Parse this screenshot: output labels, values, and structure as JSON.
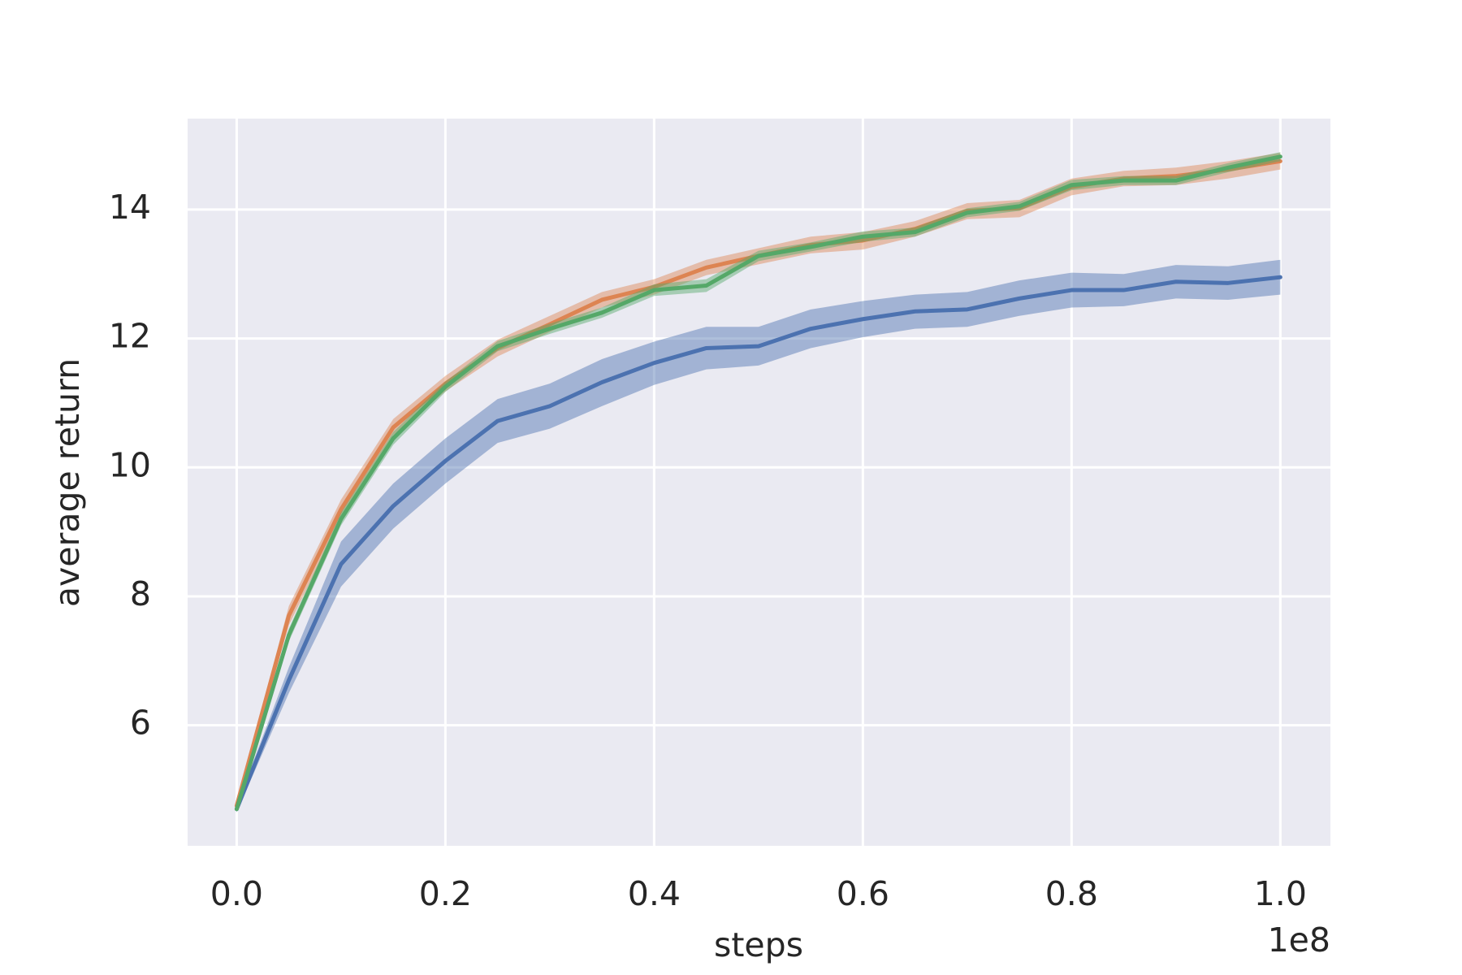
{
  "chart_data": {
    "type": "line",
    "xlabel": "steps",
    "ylabel": "average return",
    "x_offset_label": "1e8",
    "x": [
      0,
      0.05,
      0.1,
      0.15,
      0.2,
      0.25,
      0.3,
      0.35,
      0.4,
      0.45,
      0.5,
      0.55,
      0.6,
      0.65,
      0.7,
      0.75,
      0.8,
      0.85,
      0.9,
      0.95,
      1.0
    ],
    "series": [
      {
        "color": "#4c72b0",
        "values": [
          4.7,
          6.7,
          8.5,
          9.4,
          10.1,
          10.72,
          10.95,
          11.32,
          11.62,
          11.85,
          11.88,
          12.15,
          12.3,
          12.42,
          12.45,
          12.62,
          12.75,
          12.75,
          12.88,
          12.86,
          12.95
        ],
        "lower": [
          4.65,
          6.5,
          8.15,
          9.05,
          9.75,
          10.38,
          10.6,
          10.95,
          11.28,
          11.52,
          11.58,
          11.85,
          12.02,
          12.15,
          12.18,
          12.35,
          12.48,
          12.5,
          12.62,
          12.6,
          12.68
        ],
        "upper": [
          4.75,
          6.9,
          8.85,
          9.75,
          10.45,
          11.06,
          11.3,
          11.68,
          11.95,
          12.18,
          12.18,
          12.45,
          12.58,
          12.68,
          12.72,
          12.9,
          13.02,
          13.0,
          13.14,
          13.12,
          13.22
        ]
      },
      {
        "color": "#dd8452",
        "values": [
          4.75,
          7.7,
          9.35,
          10.62,
          11.3,
          11.85,
          12.22,
          12.6,
          12.8,
          13.1,
          13.28,
          13.45,
          13.52,
          13.7,
          13.98,
          14.02,
          14.35,
          14.48,
          14.52,
          14.62,
          14.75
        ],
        "lower": [
          4.7,
          7.55,
          9.2,
          10.5,
          11.18,
          11.72,
          12.1,
          12.48,
          12.68,
          12.98,
          13.15,
          13.32,
          13.38,
          13.58,
          13.85,
          13.88,
          14.22,
          14.36,
          14.38,
          14.48,
          14.62
        ],
        "upper": [
          4.8,
          7.85,
          9.5,
          10.75,
          11.42,
          11.98,
          12.35,
          12.72,
          12.92,
          13.22,
          13.4,
          13.58,
          13.65,
          13.82,
          14.1,
          14.15,
          14.48,
          14.6,
          14.65,
          14.75,
          14.88
        ]
      },
      {
        "color": "#55a868",
        "values": [
          4.7,
          7.4,
          9.2,
          10.45,
          11.25,
          11.88,
          12.15,
          12.4,
          12.75,
          12.82,
          13.28,
          13.42,
          13.58,
          13.65,
          13.95,
          14.05,
          14.38,
          14.45,
          14.45,
          14.65,
          14.82
        ],
        "lower": [
          4.65,
          7.3,
          9.1,
          10.35,
          11.17,
          11.8,
          12.07,
          12.32,
          12.66,
          12.72,
          13.2,
          13.35,
          13.5,
          13.58,
          13.88,
          13.98,
          14.3,
          14.38,
          14.38,
          14.58,
          14.75
        ],
        "upper": [
          4.75,
          7.5,
          9.3,
          10.55,
          11.33,
          11.96,
          12.23,
          12.48,
          12.84,
          12.92,
          13.36,
          13.49,
          13.66,
          13.72,
          14.02,
          14.12,
          14.46,
          14.52,
          14.52,
          14.72,
          14.89
        ]
      }
    ],
    "xlim": [
      -0.047,
      1.048
    ],
    "xticks": [
      {
        "value": 0,
        "label": "0.0"
      },
      0.2,
      0.4,
      0.6,
      0.8,
      {
        "value": 1.0,
        "label": "1.0"
      }
    ],
    "ylim": [
      4.13,
      15.41
    ],
    "yticks": [
      6,
      8,
      10,
      12,
      14
    ],
    "grid": true
  }
}
